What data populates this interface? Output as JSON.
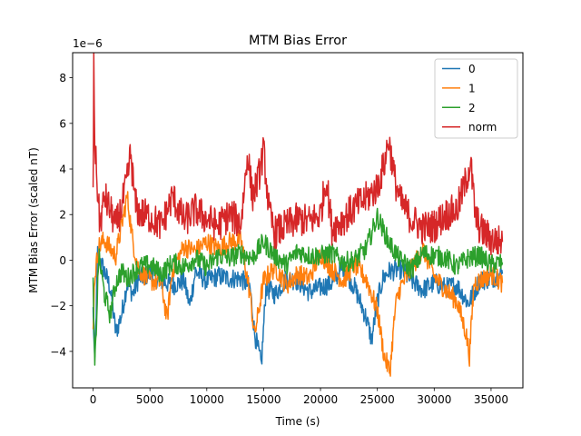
{
  "chart_data": {
    "type": "line",
    "title": "MTM Bias Error",
    "xlabel": "Time (s)",
    "ylabel": "MTM Bias Error (scaled nT)",
    "y_offset_text": "1e−6",
    "xlim": [
      -1800,
      37800
    ],
    "ylim": [
      -5.6,
      9.1
    ],
    "y_scale_factor": 1e-06,
    "x_ticks": [
      0,
      5000,
      10000,
      15000,
      20000,
      25000,
      30000,
      35000
    ],
    "y_ticks": [
      -4,
      -2,
      0,
      2,
      4,
      6,
      8
    ],
    "grid": false,
    "legend_position": "top-right",
    "series": [
      {
        "name": "0",
        "color": "#1f77b4",
        "x": [
          0,
          150,
          400,
          1000,
          1500,
          2000,
          2500,
          3000,
          3500,
          4000,
          5000,
          6000,
          7000,
          8000,
          8500,
          9000,
          10000,
          11000,
          12000,
          13000,
          13800,
          14200,
          14800,
          15200,
          16000,
          17000,
          18000,
          19000,
          20000,
          21000,
          22000,
          23000,
          24000,
          24500,
          25000,
          25500,
          26000,
          27000,
          28000,
          29000,
          30000,
          31000,
          32000,
          33000,
          34000,
          35000,
          36000
        ],
        "y": [
          -2.2,
          -4.7,
          0.3,
          -0.5,
          -1.2,
          -3.2,
          -2.4,
          -1.0,
          -1.5,
          -0.8,
          -0.6,
          -0.9,
          -1.1,
          -0.9,
          -2.0,
          -0.5,
          -0.9,
          -0.7,
          -0.8,
          -0.8,
          -1.2,
          -3.2,
          -4.6,
          -1.2,
          -1.5,
          -0.8,
          -0.9,
          -1.4,
          -1.2,
          -1.0,
          -0.3,
          -1.2,
          -2.5,
          -3.5,
          -1.8,
          -0.8,
          -0.5,
          -0.4,
          -0.9,
          -1.3,
          -1.0,
          -1.2,
          -1.1,
          -1.9,
          -0.9,
          -0.8,
          -0.6
        ]
      },
      {
        "name": "1",
        "color": "#ff7f0e",
        "x": [
          0,
          150,
          500,
          1000,
          1500,
          2000,
          2500,
          3000,
          3500,
          4000,
          5000,
          6000,
          6500,
          7000,
          8000,
          9000,
          10000,
          11000,
          12000,
          13000,
          13800,
          14200,
          15000,
          16000,
          17000,
          18000,
          19000,
          20000,
          21000,
          22000,
          23000,
          24000,
          25000,
          25600,
          26100,
          26600,
          27000,
          28000,
          29000,
          30000,
          31000,
          32000,
          32800,
          33100,
          33500,
          34000,
          35000,
          36000
        ],
        "y": [
          -2.8,
          -0.7,
          0.6,
          0.9,
          0.5,
          0.2,
          1.5,
          2.8,
          0.8,
          -0.4,
          -0.9,
          -1.0,
          -2.6,
          -0.4,
          0.6,
          0.4,
          0.8,
          0.5,
          0.8,
          0.9,
          -1.5,
          -3.3,
          -0.9,
          -0.3,
          -1.1,
          -0.6,
          -0.8,
          0.3,
          -0.4,
          -0.9,
          -0.2,
          -0.8,
          -2.2,
          -4.2,
          -4.9,
          -2.0,
          -1.2,
          -0.4,
          0.5,
          -0.7,
          -1.3,
          -1.8,
          -3.2,
          -4.2,
          -1.0,
          -0.9,
          -0.6,
          -1.0
        ]
      },
      {
        "name": "2",
        "color": "#2ca02c",
        "x": [
          0,
          150,
          500,
          1000,
          1500,
          2000,
          2500,
          3000,
          4000,
          5000,
          6000,
          7000,
          8000,
          9000,
          10000,
          11000,
          12000,
          13000,
          14000,
          15000,
          16000,
          17000,
          18000,
          19000,
          20000,
          21000,
          22000,
          23000,
          24000,
          24500,
          25000,
          26000,
          27000,
          28000,
          29000,
          30000,
          31000,
          32000,
          33000,
          34000,
          35000,
          36000
        ],
        "y": [
          -1.2,
          -4.8,
          0.2,
          -1.5,
          -2.4,
          -1.0,
          -0.5,
          -0.8,
          -0.3,
          -0.2,
          -0.6,
          -0.1,
          -0.3,
          0.1,
          -0.3,
          0.2,
          0.1,
          0.3,
          0.1,
          0.8,
          0.2,
          -0.2,
          0.4,
          0.2,
          0.2,
          0.3,
          -0.1,
          0.0,
          0.5,
          1.2,
          1.9,
          0.8,
          0.0,
          -0.4,
          0.3,
          0.2,
          0.1,
          -0.3,
          0.1,
          0.2,
          -0.2,
          -0.1
        ]
      },
      {
        "name": "norm",
        "color": "#d62728",
        "x": [
          0,
          60,
          150,
          300,
          600,
          1000,
          1500,
          2000,
          2500,
          3000,
          3300,
          3700,
          4000,
          5000,
          6000,
          7000,
          8000,
          9000,
          10000,
          11000,
          12000,
          13000,
          13600,
          14000,
          14500,
          15000,
          15500,
          16000,
          17000,
          18000,
          19000,
          20000,
          20500,
          21000,
          22000,
          23000,
          24000,
          25000,
          25600,
          26000,
          26500,
          27000,
          28000,
          29000,
          30000,
          31000,
          32000,
          32800,
          33200,
          33600,
          34000,
          35000,
          36000
        ],
        "y": [
          2.5,
          8.6,
          5.2,
          3.8,
          1.5,
          2.8,
          2.2,
          1.5,
          2.3,
          3.5,
          4.7,
          2.5,
          2.1,
          1.9,
          1.5,
          2.8,
          1.7,
          2.2,
          1.8,
          1.5,
          2.0,
          1.6,
          4.7,
          2.8,
          3.5,
          4.8,
          2.0,
          1.2,
          1.5,
          1.8,
          1.7,
          2.0,
          3.6,
          1.4,
          1.8,
          2.3,
          2.7,
          3.2,
          4.2,
          5.3,
          3.6,
          2.6,
          1.8,
          1.4,
          1.5,
          2.0,
          2.2,
          3.5,
          4.3,
          2.0,
          1.4,
          0.9,
          0.8
        ]
      }
    ]
  }
}
